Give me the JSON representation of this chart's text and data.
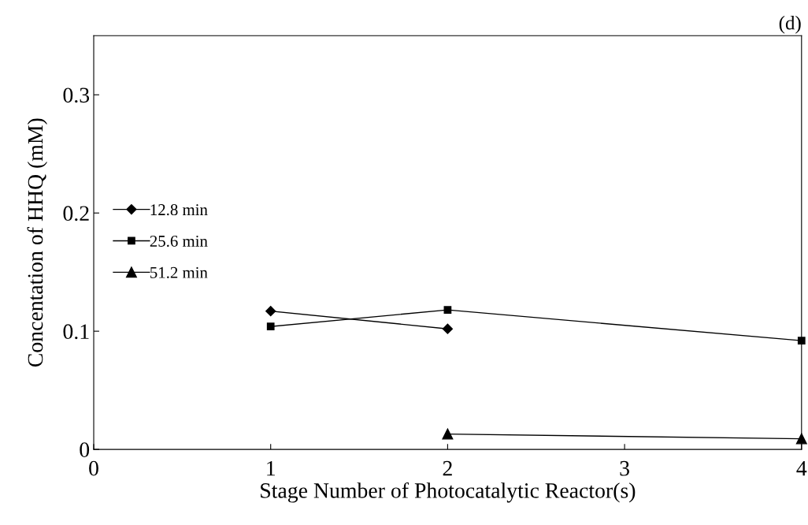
{
  "chart_data": {
    "type": "line",
    "xlabel": "Stage Number of Photocatalytic Reactor(s)",
    "ylabel": "Concentation of HHQ (mM)",
    "annotations": [
      "(d)"
    ],
    "xlim": [
      0,
      4
    ],
    "xticks": [
      0,
      1,
      2,
      3,
      4
    ],
    "ylim": [
      0,
      0.35
    ],
    "yticks": [
      {
        "value": 0,
        "label": "0"
      },
      0.1,
      0.2,
      0.3
    ],
    "grid": false,
    "legend": "left",
    "line_style": "solid",
    "series": [
      {
        "name": "12.8 min",
        "color": "#000000",
        "marker": "diamond",
        "x": [
          1,
          2
        ],
        "values": [
          0.117,
          0.102
        ]
      },
      {
        "name": "25.6 min",
        "color": "#000000",
        "marker": "square",
        "x": [
          1,
          2,
          4
        ],
        "values": [
          0.104,
          0.118,
          0.092
        ]
      },
      {
        "name": "51.2 min",
        "color": "#000000",
        "marker": "triangle",
        "x": [
          2,
          4
        ],
        "values": [
          0.013,
          0.009
        ]
      }
    ]
  }
}
